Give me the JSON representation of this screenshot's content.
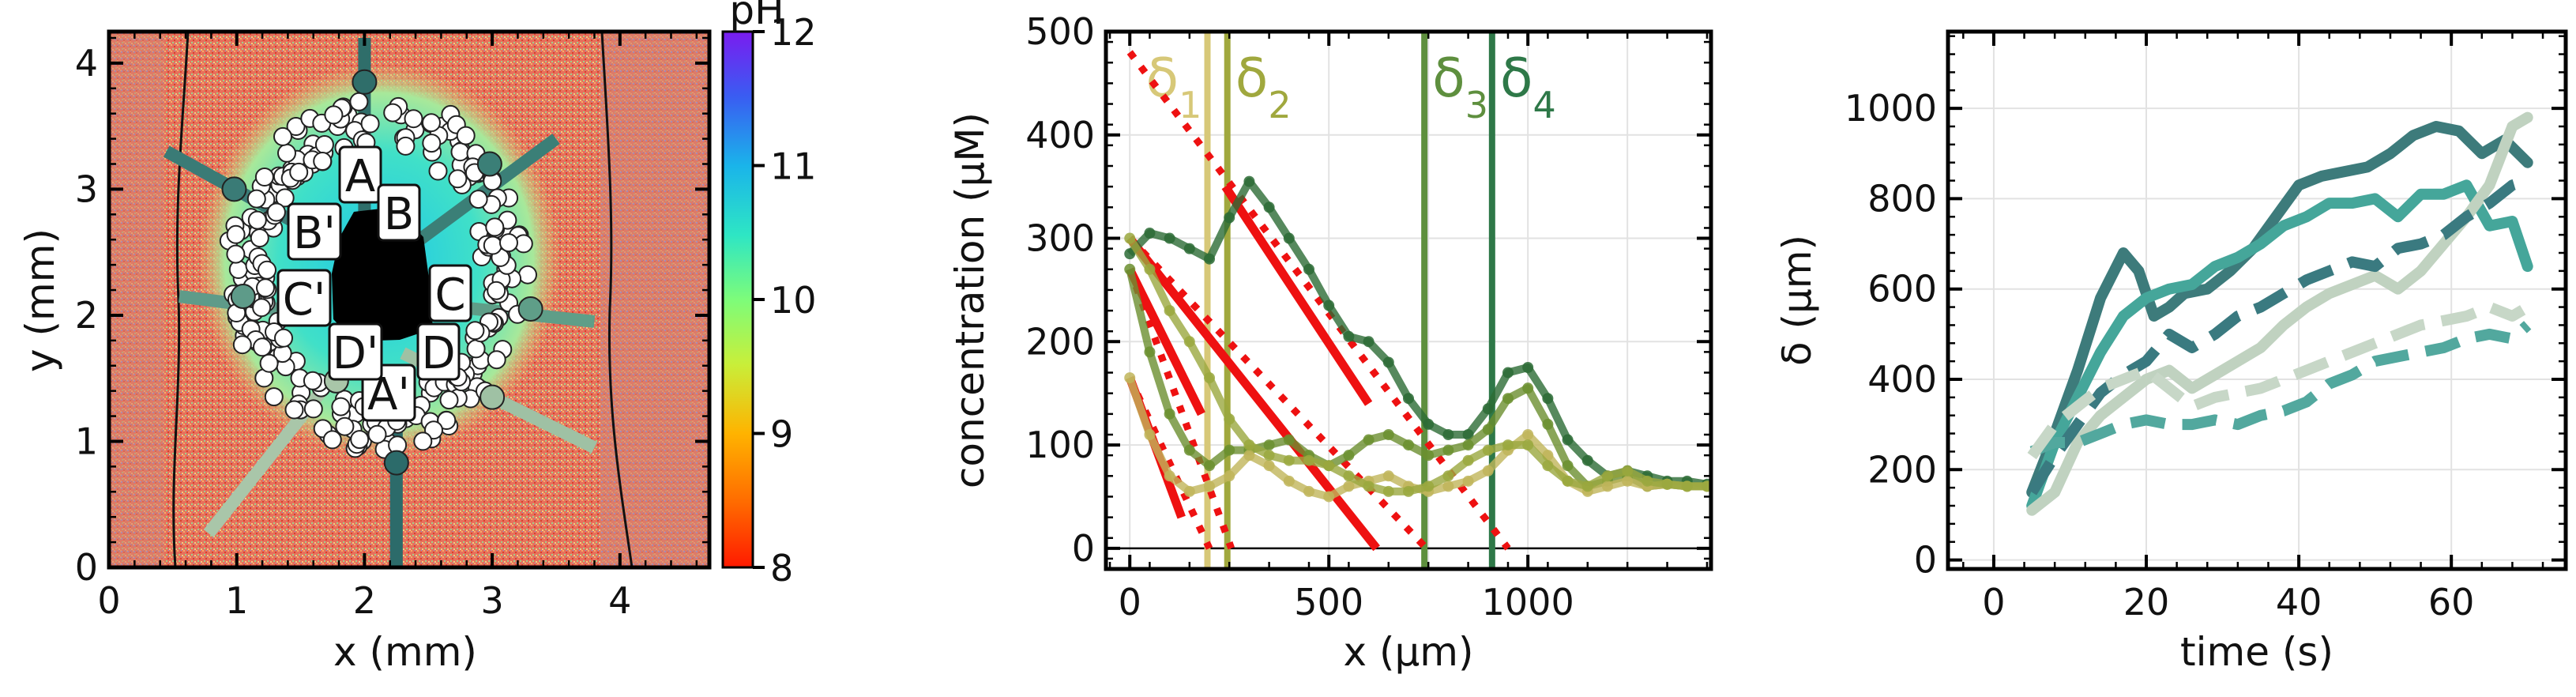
{
  "chart_data": [
    {
      "type": "heatmap",
      "xlabel": "x (mm)",
      "ylabel": "y (mm)",
      "xlim": [
        0,
        4.7
      ],
      "ylim": [
        0,
        4.25
      ],
      "xticks": [
        "0",
        "1",
        "2",
        "3",
        "4"
      ],
      "yticks": [
        "0",
        "1",
        "2",
        "3",
        "4"
      ],
      "colorbar": {
        "label": "pH",
        "range": [
          8,
          12
        ],
        "ticks": [
          "8",
          "9",
          "10",
          "11",
          "12"
        ]
      },
      "annotations": [
        "A",
        "B",
        "C",
        "D",
        "A'",
        "B'",
        "C'",
        "D'"
      ],
      "rays": [
        {
          "x": [
            2.0,
            2.0
          ],
          "y": [
            2.3,
            4.2
          ],
          "end": [
            2.0,
            3.85
          ],
          "color": "#2f6e6a"
        },
        {
          "x": [
            2.3,
            3.5
          ],
          "y": [
            2.5,
            3.4
          ],
          "end": [
            2.98,
            3.2
          ],
          "color": "#3b7f77"
        },
        {
          "x": [
            2.4,
            3.8
          ],
          "y": [
            2.1,
            1.95
          ],
          "end": [
            3.3,
            2.05
          ],
          "color": "#5f9e88"
        },
        {
          "x": [
            2.3,
            3.8
          ],
          "y": [
            1.7,
            0.95
          ],
          "end": [
            3.0,
            1.35
          ],
          "color": "#9fc1a4"
        },
        {
          "x": [
            2.25,
            2.25
          ],
          "y": [
            1.6,
            0.0
          ],
          "end": [
            2.25,
            0.83
          ],
          "color": "#2c6b6a"
        },
        {
          "x": [
            1.9,
            0.78
          ],
          "y": [
            1.7,
            0.27
          ],
          "end": [
            1.78,
            1.48
          ],
          "color": "#a9c6a9"
        },
        {
          "x": [
            1.7,
            0.55
          ],
          "y": [
            2.0,
            2.15
          ],
          "end": [
            1.05,
            2.15
          ],
          "color": "#5e9b89"
        },
        {
          "x": [
            1.7,
            0.45
          ],
          "y": [
            2.6,
            3.3
          ],
          "end": [
            0.98,
            3.0
          ],
          "color": "#3a7b76"
        }
      ]
    },
    {
      "type": "line",
      "xlabel": "x (µm)",
      "ylabel": "concentration (µM)",
      "xlim": [
        -60,
        1460
      ],
      "ylim": [
        -20,
        500
      ],
      "xticks": [
        "0",
        "500",
        "1000"
      ],
      "yticks": [
        "0",
        "100",
        "200",
        "300",
        "400",
        "500"
      ],
      "vlines": [
        {
          "label": "δ",
          "sub": "1",
          "x": 195,
          "color": "#d7c878"
        },
        {
          "label": "δ",
          "sub": "2",
          "x": 245,
          "color": "#a0a83e"
        },
        {
          "label": "δ",
          "sub": "3",
          "x": 740,
          "color": "#5e8f3e"
        },
        {
          "label": "δ",
          "sub": "4",
          "x": 910,
          "color": "#2e7848"
        }
      ],
      "series": [
        {
          "x": [
            0,
            50,
            100,
            150,
            200,
            250,
            300,
            350,
            400,
            450,
            500,
            550,
            600,
            650,
            700,
            750,
            800,
            850,
            900,
            950,
            1000,
            1050,
            1100,
            1150,
            1200,
            1250,
            1300,
            1350,
            1400,
            1450
          ],
          "values": [
            285,
            305,
            300,
            290,
            280,
            320,
            355,
            330,
            300,
            270,
            235,
            205,
            200,
            180,
            145,
            120,
            110,
            110,
            135,
            170,
            175,
            145,
            105,
            85,
            70,
            75,
            70,
            65,
            65,
            62
          ],
          "color": "#2c6b35"
        },
        {
          "x": [
            0,
            50,
            100,
            150,
            200,
            250,
            300,
            350,
            400,
            450,
            500,
            550,
            600,
            650,
            700,
            750,
            800,
            850,
            900,
            950,
            1000,
            1050,
            1100,
            1150,
            1200,
            1250,
            1300,
            1350,
            1400,
            1450
          ],
          "values": [
            270,
            190,
            130,
            95,
            80,
            95,
            95,
            100,
            105,
            90,
            80,
            90,
            105,
            110,
            100,
            90,
            95,
            100,
            115,
            145,
            155,
            120,
            80,
            60,
            65,
            70,
            60,
            62,
            60,
            60
          ],
          "color": "#6b8f2f"
        },
        {
          "x": [
            0,
            50,
            100,
            150,
            200,
            250,
            300,
            350,
            400,
            450,
            500,
            550,
            600,
            650,
            700,
            750,
            800,
            850,
            900,
            950,
            1000,
            1050,
            1100,
            1150,
            1200,
            1250,
            1300,
            1350,
            1400,
            1450
          ],
          "values": [
            165,
            110,
            70,
            55,
            60,
            70,
            90,
            80,
            65,
            55,
            50,
            60,
            65,
            70,
            60,
            55,
            60,
            65,
            75,
            95,
            110,
            90,
            65,
            55,
            60,
            65,
            60,
            62,
            60,
            60
          ],
          "color": "#c0b55a"
        },
        {
          "x": [
            0,
            50,
            100,
            150,
            200,
            250,
            300,
            350,
            400,
            450,
            500,
            550,
            600,
            650,
            700,
            750,
            800,
            850,
            900,
            950,
            1000,
            1050,
            1100,
            1150,
            1200,
            1250,
            1300,
            1350,
            1400,
            1450
          ],
          "values": [
            300,
            270,
            230,
            200,
            165,
            125,
            100,
            90,
            85,
            85,
            80,
            70,
            60,
            55,
            55,
            60,
            70,
            85,
            95,
            100,
            100,
            80,
            65,
            60,
            70,
            75,
            65,
            62,
            60,
            60
          ],
          "color": "#9aa83e"
        }
      ],
      "fit_lines": [
        {
          "x": [
            0,
            130
          ],
          "y": [
            165,
            30
          ],
          "xd": [
            0,
            200
          ],
          "yd": [
            165,
            0
          ]
        },
        {
          "x": [
            0,
            180
          ],
          "y": [
            270,
            130
          ],
          "xd": [
            0,
            255
          ],
          "yd": [
            270,
            0
          ]
        },
        {
          "x": [
            0,
            620
          ],
          "y": [
            300,
            0
          ],
          "xd": [
            0,
            745
          ],
          "yd": [
            300,
            0
          ]
        },
        {
          "x": [
            240,
            600
          ],
          "y": [
            350,
            140
          ],
          "xd": [
            0,
            950
          ],
          "yd": [
            480,
            0
          ]
        }
      ]
    },
    {
      "type": "line",
      "xlabel": "time (s)",
      "ylabel": "δ (µm)",
      "xlim": [
        -6,
        75
      ],
      "ylim": [
        -20,
        1170
      ],
      "xticks": [
        "0",
        "20",
        "40",
        "60"
      ],
      "yticks": [
        "0",
        "200",
        "400",
        "600",
        "800",
        "1000"
      ],
      "series": [
        {
          "x": [
            5,
            8,
            11,
            14,
            17,
            19,
            21,
            23,
            25,
            28,
            31,
            34,
            37,
            40,
            43,
            46,
            49,
            52,
            55,
            58,
            61,
            64,
            67,
            70
          ],
          "values": [
            150,
            280,
            420,
            580,
            680,
            640,
            540,
            560,
            590,
            600,
            640,
            690,
            760,
            830,
            850,
            860,
            870,
            900,
            940,
            960,
            950,
            900,
            930,
            880
          ],
          "color": "#3d7b7b",
          "style": "solid"
        },
        {
          "x": [
            5,
            8,
            11,
            14,
            17,
            20,
            23,
            26,
            29,
            32,
            35,
            38,
            41,
            44,
            47,
            50,
            53,
            56,
            59,
            62,
            65,
            68,
            70
          ],
          "values": [
            120,
            260,
            360,
            460,
            540,
            580,
            600,
            610,
            650,
            670,
            700,
            740,
            760,
            790,
            790,
            800,
            760,
            810,
            810,
            830,
            740,
            750,
            650
          ],
          "color": "#45a69a",
          "style": "solid"
        },
        {
          "x": [
            5,
            8,
            11,
            14,
            17,
            20,
            23,
            26,
            29,
            32,
            35,
            38,
            41,
            44,
            47,
            50,
            53,
            56,
            59,
            62,
            65,
            68,
            70
          ],
          "values": [
            110,
            150,
            260,
            320,
            360,
            400,
            420,
            380,
            410,
            440,
            470,
            520,
            560,
            590,
            610,
            630,
            600,
            640,
            700,
            760,
            830,
            960,
            980
          ],
          "color": "#c0d2c0",
          "style": "solid"
        },
        {
          "x": [
            5,
            8,
            11,
            14,
            17,
            20,
            23,
            26,
            29,
            32,
            35,
            38,
            41,
            44,
            47,
            50,
            53,
            56,
            59,
            62,
            65,
            68,
            70
          ],
          "values": [
            150,
            230,
            300,
            370,
            410,
            440,
            500,
            470,
            500,
            540,
            560,
            590,
            620,
            640,
            660,
            650,
            690,
            700,
            720,
            760,
            790,
            830,
            840
          ],
          "color": "#3a7a80",
          "style": "dashed"
        },
        {
          "x": [
            5,
            8,
            11,
            14,
            17,
            20,
            23,
            26,
            29,
            32,
            35,
            38,
            41,
            44,
            47,
            50,
            53,
            56,
            59,
            62,
            65,
            68,
            70
          ],
          "values": [
            240,
            260,
            260,
            280,
            300,
            310,
            300,
            300,
            310,
            300,
            320,
            330,
            350,
            390,
            410,
            440,
            450,
            460,
            470,
            490,
            500,
            490,
            520
          ],
          "color": "#52a89e",
          "style": "dashed"
        },
        {
          "x": [
            5,
            8,
            11,
            14,
            17,
            20,
            23,
            26,
            29,
            32,
            35,
            38,
            41,
            44,
            47,
            50,
            53,
            56,
            59,
            62,
            65,
            68,
            70
          ],
          "values": [
            230,
            300,
            340,
            380,
            400,
            420,
            380,
            340,
            360,
            370,
            380,
            400,
            420,
            440,
            460,
            480,
            500,
            520,
            530,
            540,
            560,
            540,
            560
          ],
          "color": "#c7d7c7",
          "style": "dashed"
        }
      ]
    }
  ]
}
